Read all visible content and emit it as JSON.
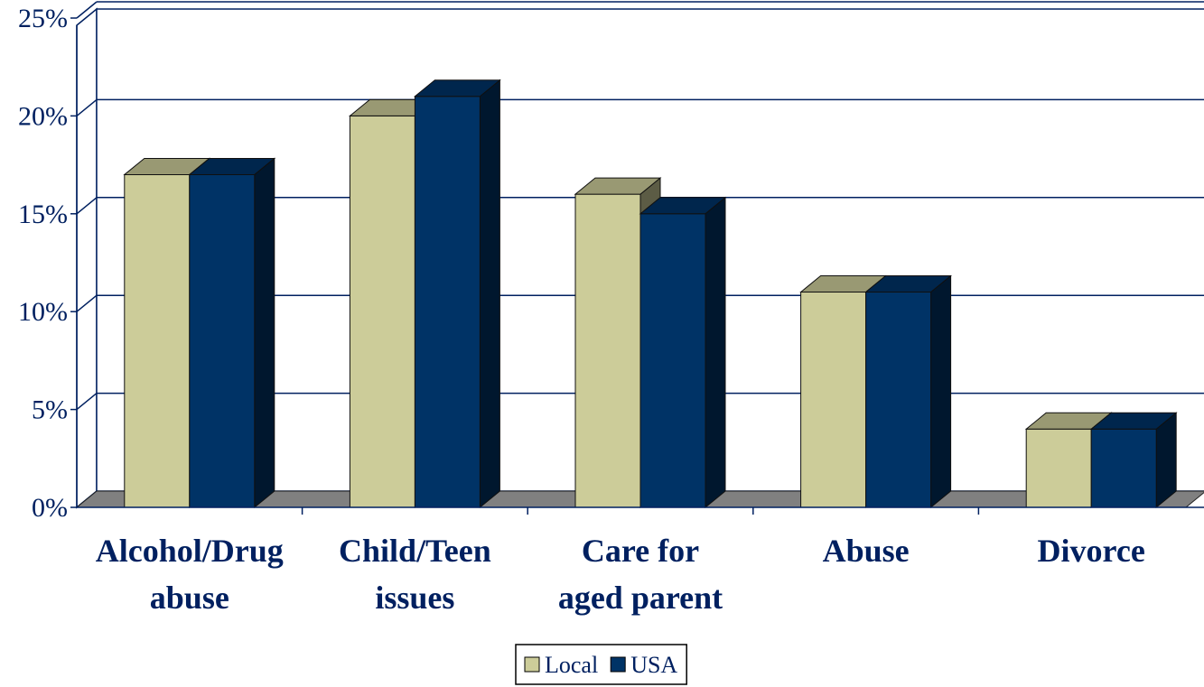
{
  "chart_data": {
    "type": "bar",
    "title": "",
    "xlabel": "",
    "ylabel": "",
    "categories": [
      [
        "Alcohol/Drug",
        "abuse"
      ],
      [
        "Child/Teen",
        "issues"
      ],
      [
        "Care for",
        "aged parent"
      ],
      [
        "Abuse"
      ],
      [
        "Divorce"
      ]
    ],
    "series": [
      {
        "name": "Local",
        "values": [
          17,
          20,
          16,
          11,
          4
        ],
        "color": "#CCCC99"
      },
      {
        "name": "USA",
        "values": [
          17,
          21,
          15,
          11,
          4
        ],
        "color": "#003366"
      }
    ],
    "yticks": [
      "0%",
      "5%",
      "10%",
      "15%",
      "20%",
      "25%"
    ],
    "ylim": [
      0,
      25
    ],
    "grid": true,
    "legend": "bottom"
  }
}
